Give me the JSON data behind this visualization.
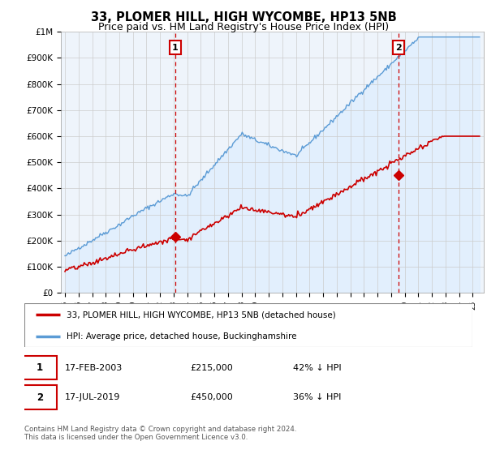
{
  "title": "33, PLOMER HILL, HIGH WYCOMBE, HP13 5NB",
  "subtitle": "Price paid vs. HM Land Registry's House Price Index (HPI)",
  "title_fontsize": 10.5,
  "subtitle_fontsize": 9,
  "ytick_labels": [
    "£0",
    "£100K",
    "£200K",
    "£300K",
    "£400K",
    "£500K",
    "£600K",
    "£700K",
    "£800K",
    "£900K",
    "£1M"
  ],
  "ytick_values": [
    0,
    100000,
    200000,
    300000,
    400000,
    500000,
    600000,
    700000,
    800000,
    900000,
    1000000
  ],
  "ylim": [
    0,
    1000000
  ],
  "xlim_start": 1994.7,
  "xlim_end": 2025.8,
  "hpi_color": "#5b9bd5",
  "hpi_fill_color": "#ddeeff",
  "price_color": "#cc0000",
  "dashed_color": "#cc0000",
  "marker1_x": 2003.12,
  "marker1_y": 215000,
  "marker2_x": 2019.54,
  "marker2_y": 450000,
  "legend_line1": "33, PLOMER HILL, HIGH WYCOMBE, HP13 5NB (detached house)",
  "legend_line2": "HPI: Average price, detached house, Buckinghamshire",
  "table_row1_num": "1",
  "table_row1_date": "17-FEB-2003",
  "table_row1_price": "£215,000",
  "table_row1_hpi": "42% ↓ HPI",
  "table_row2_num": "2",
  "table_row2_date": "17-JUL-2019",
  "table_row2_price": "£450,000",
  "table_row2_hpi": "36% ↓ HPI",
  "footnote1": "Contains HM Land Registry data © Crown copyright and database right 2024.",
  "footnote2": "This data is licensed under the Open Government Licence v3.0.",
  "background_color": "#ffffff",
  "grid_color": "#cccccc"
}
